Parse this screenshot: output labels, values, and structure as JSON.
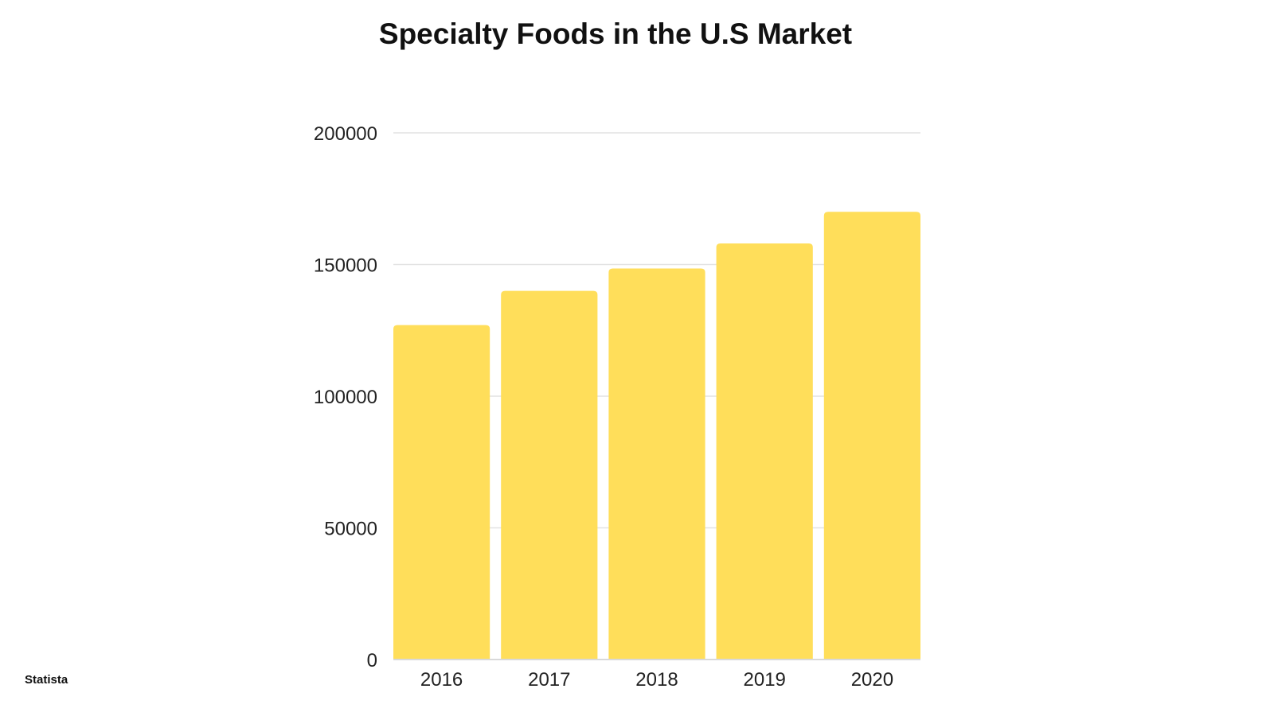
{
  "chart_data": {
    "type": "bar",
    "title": "Specialty Foods in the U.S Market",
    "categories": [
      "2016",
      "2017",
      "2018",
      "2019",
      "2020"
    ],
    "values": [
      127000,
      140000,
      148500,
      158000,
      170000
    ],
    "xlabel": "",
    "ylabel": "",
    "ylim": [
      0,
      200000
    ],
    "yticks": [
      "0",
      "50000",
      "100000",
      "150000",
      "200000"
    ],
    "ytick_values": [
      0,
      50000,
      100000,
      150000,
      200000
    ],
    "grid": true,
    "legend": "none",
    "bar_color": "#FFDE5A",
    "grid_color": "#E2E2E2"
  },
  "source": "Statista"
}
